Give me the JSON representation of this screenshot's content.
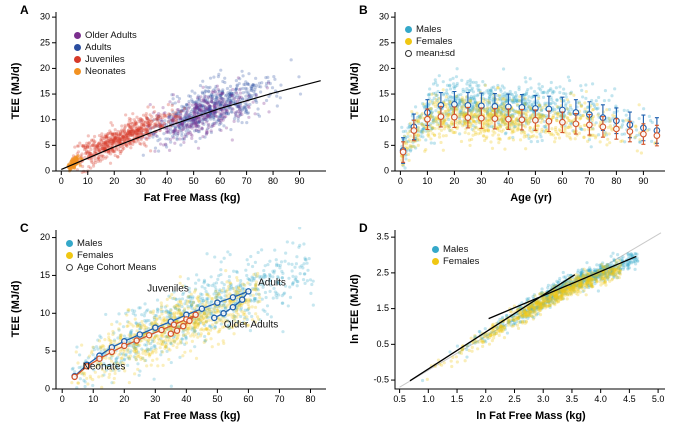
{
  "chart_data": [
    {
      "type": "scatter",
      "panel_letter": "A",
      "xlabel": "Fat Free Mass (kg)",
      "ylabel": "TEE (MJ/d)",
      "xlim": [
        -2,
        100
      ],
      "ylim": [
        0,
        31
      ],
      "xticks": [
        0,
        10,
        20,
        30,
        40,
        50,
        60,
        70,
        80,
        90
      ],
      "yticks": [
        0,
        5,
        10,
        15,
        20,
        25,
        30
      ],
      "legend": {
        "position": "top-left",
        "items": [
          {
            "label": "Older Adults",
            "swatch": "filled",
            "color": "#7b2f8e"
          },
          {
            "label": "Adults",
            "swatch": "filled",
            "color": "#2b4ea0"
          },
          {
            "label": "Juveniles",
            "swatch": "filled",
            "color": "#d63a2a"
          },
          {
            "label": "Neonates",
            "swatch": "filled",
            "color": "#f29222"
          }
        ]
      },
      "series": [
        {
          "kind": "cloud",
          "name": "Adults",
          "color": "#2b4ea0",
          "alpha": 0.28,
          "r": 1.6,
          "n": 650,
          "x_dist": {
            "type": "gauss",
            "mean": 56,
            "sd": 11,
            "clamp": [
              30,
              92
            ]
          },
          "trend": [
            [
              30,
              7.6
            ],
            [
              56,
              12.2
            ],
            [
              92,
              17.6
            ]
          ],
          "y_sd": 2.1
        },
        {
          "kind": "cloud",
          "name": "Older Adults",
          "color": "#7b2f8e",
          "alpha": 0.3,
          "r": 1.6,
          "n": 320,
          "x_dist": {
            "type": "gauss",
            "mean": 52,
            "sd": 10,
            "clamp": [
              30,
              80
            ]
          },
          "trend": [
            [
              30,
              7.2
            ],
            [
              52,
              10.8
            ],
            [
              80,
              15.0
            ]
          ],
          "y_sd": 2.0
        },
        {
          "kind": "cloud",
          "name": "Juveniles",
          "color": "#d63a2a",
          "alpha": 0.3,
          "r": 1.6,
          "n": 650,
          "x_dist": {
            "type": "gauss",
            "mean": 22,
            "sd": 10,
            "clamp": [
              4,
              48
            ]
          },
          "trend": [
            [
              4,
              2.0
            ],
            [
              22,
              6.3
            ],
            [
              48,
              12.0
            ]
          ],
          "y_sd": 1.4
        },
        {
          "kind": "cloud",
          "name": "Neonates",
          "color": "#f29222",
          "alpha": 0.5,
          "r": 1.5,
          "n": 140,
          "x_dist": {
            "type": "gauss",
            "mean": 4.5,
            "sd": 1.2,
            "clamp": [
              2.5,
              8
            ]
          },
          "trend": [
            [
              2.5,
              0.9
            ],
            [
              8,
              2.6
            ]
          ],
          "y_sd": 0.5
        },
        {
          "kind": "line",
          "name": "overall-fit",
          "color": "#000000",
          "width": 1.2,
          "points": [
            [
              0,
              0.3
            ],
            [
              20,
              4.7
            ],
            [
              40,
              8.7
            ],
            [
              60,
              12.2
            ],
            [
              80,
              15.2
            ],
            [
              98,
              17.6
            ]
          ]
        }
      ]
    },
    {
      "type": "scatter",
      "panel_letter": "B",
      "xlabel": "Age (yr)",
      "ylabel": "TEE (MJ/d)",
      "xlim": [
        -2,
        98
      ],
      "ylim": [
        0,
        31
      ],
      "xticks": [
        0,
        10,
        20,
        30,
        40,
        50,
        60,
        70,
        80,
        90
      ],
      "yticks": [
        0,
        5,
        10,
        15,
        20,
        25,
        30
      ],
      "legend": {
        "position": "top-left",
        "items": [
          {
            "label": "Males",
            "swatch": "filled",
            "color": "#35a8c9"
          },
          {
            "label": "Females",
            "swatch": "filled",
            "color": "#f0c713"
          },
          {
            "label": "mean±sd",
            "swatch": "open",
            "color": "#333333"
          }
        ]
      },
      "series": [
        {
          "kind": "cloud",
          "name": "Males",
          "color": "#35a8c9",
          "alpha": 0.3,
          "r": 1.6,
          "n": 850,
          "x_dist": {
            "type": "gauss",
            "mean": 33,
            "sd": 26,
            "clamp": [
              0.3,
              96
            ]
          },
          "trend": [
            [
              0,
              2.2
            ],
            [
              3,
              6.5
            ],
            [
              7,
              9.5
            ],
            [
              12,
              12.0
            ],
            [
              18,
              13.0
            ],
            [
              30,
              12.7
            ],
            [
              45,
              12.4
            ],
            [
              60,
              11.9
            ],
            [
              70,
              11.0
            ],
            [
              80,
              9.8
            ],
            [
              96,
              8.0
            ]
          ],
          "y_sd": 2.4
        },
        {
          "kind": "cloud",
          "name": "Females",
          "color": "#f0c713",
          "alpha": 0.3,
          "r": 1.6,
          "n": 850,
          "x_dist": {
            "type": "gauss",
            "mean": 33,
            "sd": 26,
            "clamp": [
              0.3,
              96
            ]
          },
          "trend": [
            [
              0,
              2.0
            ],
            [
              3,
              6.0
            ],
            [
              7,
              8.8
            ],
            [
              12,
              10.3
            ],
            [
              18,
              10.6
            ],
            [
              30,
              10.3
            ],
            [
              45,
              10.0
            ],
            [
              60,
              9.5
            ],
            [
              70,
              9.0
            ],
            [
              80,
              8.2
            ],
            [
              96,
              6.8
            ]
          ],
          "y_sd": 2.0
        },
        {
          "kind": "errorbars",
          "name": "Males mean±sd",
          "color": "#1d5fae",
          "sd": 2.5,
          "r": 2.8,
          "points": [
            [
              1,
              4.0
            ],
            [
              5,
              8.6
            ],
            [
              10,
              11.4
            ],
            [
              15,
              12.8
            ],
            [
              20,
              13.0
            ],
            [
              25,
              12.8
            ],
            [
              30,
              12.7
            ],
            [
              35,
              12.6
            ],
            [
              40,
              12.5
            ],
            [
              45,
              12.4
            ],
            [
              50,
              12.2
            ],
            [
              55,
              12.1
            ],
            [
              60,
              11.9
            ],
            [
              65,
              11.4
            ],
            [
              70,
              11.0
            ],
            [
              75,
              10.4
            ],
            [
              80,
              9.8
            ],
            [
              85,
              9.0
            ],
            [
              90,
              8.4
            ],
            [
              95,
              7.9
            ]
          ]
        },
        {
          "kind": "errorbars",
          "name": "Females mean±sd",
          "color": "#d2552b",
          "sd": 2.0,
          "r": 2.8,
          "points": [
            [
              1,
              3.7
            ],
            [
              5,
              7.9
            ],
            [
              10,
              10.1
            ],
            [
              15,
              10.6
            ],
            [
              20,
              10.5
            ],
            [
              25,
              10.4
            ],
            [
              30,
              10.3
            ],
            [
              35,
              10.2
            ],
            [
              40,
              10.1
            ],
            [
              45,
              10.0
            ],
            [
              50,
              9.9
            ],
            [
              55,
              9.7
            ],
            [
              60,
              9.5
            ],
            [
              65,
              9.2
            ],
            [
              70,
              9.0
            ],
            [
              75,
              8.6
            ],
            [
              80,
              8.2
            ],
            [
              85,
              7.7
            ],
            [
              90,
              7.2
            ],
            [
              95,
              6.9
            ]
          ]
        }
      ]
    },
    {
      "type": "scatter",
      "panel_letter": "C",
      "xlabel": "Fat Free Mass (kg)",
      "ylabel": "TEE (MJ/d)",
      "xlim": [
        -2,
        85
      ],
      "ylim": [
        0,
        21
      ],
      "xticks": [
        0,
        10,
        20,
        30,
        40,
        50,
        60,
        70,
        80
      ],
      "yticks": [
        0,
        5,
        10,
        15,
        20
      ],
      "legend": {
        "position": "top-left",
        "items": [
          {
            "label": "Males",
            "swatch": "filled",
            "color": "#35a8c9"
          },
          {
            "label": "Females",
            "swatch": "filled",
            "color": "#f0c713"
          },
          {
            "label": "Age Cohort Means",
            "swatch": "open",
            "color": "#444444"
          }
        ]
      },
      "annotations": [
        {
          "text": "Juveniles"
        },
        {
          "text": "Adults"
        },
        {
          "text": "Older Adults"
        },
        {
          "text": "Neonates"
        }
      ],
      "series": [
        {
          "kind": "cloud",
          "name": "Males",
          "color": "#35a8c9",
          "alpha": 0.28,
          "r": 1.6,
          "n": 750,
          "x_dist": {
            "type": "gauss",
            "mean": 45,
            "sd": 22,
            "clamp": [
              3,
              82
            ]
          },
          "trend": [
            [
              3,
              1.3
            ],
            [
              20,
              6.2
            ],
            [
              40,
              9.7
            ],
            [
              60,
              12.9
            ],
            [
              82,
              16.2
            ]
          ],
          "y_sd": 2.0
        },
        {
          "kind": "cloud",
          "name": "Females",
          "color": "#f0c713",
          "alpha": 0.28,
          "r": 1.6,
          "n": 750,
          "x_dist": {
            "type": "gauss",
            "mean": 38,
            "sd": 18,
            "clamp": [
              3,
              64
            ]
          },
          "trend": [
            [
              3,
              1.2
            ],
            [
              20,
              5.8
            ],
            [
              40,
              9.0
            ],
            [
              64,
              11.8
            ]
          ],
          "y_sd": 1.8
        },
        {
          "kind": "path",
          "name": "Male age cohort means",
          "color": "#1d5fae",
          "r": 2.6,
          "points": [
            [
              4,
              1.7
            ],
            [
              8,
              3.2
            ],
            [
              12,
              4.4
            ],
            [
              16,
              5.5
            ],
            [
              20,
              6.3
            ],
            [
              25,
              7.2
            ],
            [
              30,
              8.1
            ],
            [
              35,
              8.9
            ],
            [
              40,
              9.8
            ],
            [
              45,
              10.6
            ],
            [
              50,
              11.4
            ],
            [
              55,
              12.1
            ],
            [
              60,
              12.9
            ],
            [
              58,
              11.8
            ],
            [
              55,
              10.8
            ],
            [
              52,
              10.0
            ],
            [
              49,
              9.4
            ]
          ]
        },
        {
          "kind": "path",
          "name": "Female age cohort means",
          "color": "#d2552b",
          "r": 2.6,
          "points": [
            [
              4,
              1.6
            ],
            [
              8,
              3.0
            ],
            [
              12,
              4.0
            ],
            [
              16,
              4.9
            ],
            [
              20,
              5.7
            ],
            [
              24,
              6.4
            ],
            [
              28,
              7.1
            ],
            [
              32,
              7.8
            ],
            [
              36,
              8.5
            ],
            [
              40,
              9.2
            ],
            [
              43,
              9.8
            ],
            [
              41,
              9.0
            ],
            [
              39,
              8.3
            ],
            [
              37,
              7.7
            ],
            [
              35,
              7.3
            ]
          ]
        }
      ]
    },
    {
      "type": "scatter",
      "panel_letter": "D",
      "xlabel": "ln Fat Free Mass (kg)",
      "ylabel": "ln TEE (MJ/d)",
      "xlim": [
        0.42,
        5.12
      ],
      "ylim": [
        -0.75,
        3.7
      ],
      "xticks": [
        0.5,
        1.0,
        1.5,
        2.0,
        2.5,
        3.0,
        3.5,
        4.0,
        4.5,
        5.0
      ],
      "xtick_labels": [
        "0.5",
        "1.0",
        "1.5",
        "2.0",
        "2.5",
        "3.0",
        "3.5",
        "4.0",
        "4.5",
        "5.0"
      ],
      "yticks": [
        -0.5,
        0.5,
        1.5,
        2.5,
        3.5
      ],
      "ytick_labels": [
        "-0.5",
        "0.5",
        "1.5",
        "2.5",
        "3.5"
      ],
      "legend": {
        "position": "top-left",
        "items": [
          {
            "label": "Males",
            "swatch": "filled",
            "color": "#35a8c9"
          },
          {
            "label": "Females",
            "swatch": "filled",
            "color": "#f0c713"
          }
        ]
      },
      "series": [
        {
          "kind": "line",
          "name": "reference-line",
          "color": "#c9c9c9",
          "width": 1,
          "points": [
            [
              0.5,
              -0.7
            ],
            [
              5.05,
              3.62
            ]
          ]
        },
        {
          "kind": "cloud",
          "name": "Males",
          "color": "#35a8c9",
          "alpha": 0.3,
          "r": 1.6,
          "n": 750,
          "x_dist": {
            "type": "gauss",
            "mean": 3.6,
            "sd": 0.8,
            "clamp": [
              0.8,
              4.65
            ]
          },
          "trend": [
            [
              0.8,
              -0.45
            ],
            [
              1.5,
              0.28
            ],
            [
              2.2,
              0.95
            ],
            [
              3.0,
              1.75
            ],
            [
              3.5,
              2.22
            ],
            [
              4.0,
              2.52
            ],
            [
              4.65,
              2.9
            ]
          ],
          "y_sd": 0.14
        },
        {
          "kind": "cloud",
          "name": "Females",
          "color": "#f0c713",
          "alpha": 0.3,
          "r": 1.6,
          "n": 750,
          "x_dist": {
            "type": "gauss",
            "mean": 3.3,
            "sd": 0.8,
            "clamp": [
              0.8,
              4.35
            ]
          },
          "trend": [
            [
              0.8,
              -0.5
            ],
            [
              1.5,
              0.22
            ],
            [
              2.2,
              0.9
            ],
            [
              3.0,
              1.68
            ],
            [
              3.5,
              2.12
            ],
            [
              4.0,
              2.42
            ],
            [
              4.35,
              2.58
            ]
          ],
          "y_sd": 0.13
        },
        {
          "kind": "line",
          "name": "segment-fit-1",
          "color": "#000000",
          "width": 1.3,
          "points": [
            [
              0.68,
              -0.52
            ],
            [
              3.55,
              2.45
            ]
          ]
        },
        {
          "kind": "line",
          "name": "segment-fit-2",
          "color": "#000000",
          "width": 1.3,
          "points": [
            [
              2.05,
              1.22
            ],
            [
              4.62,
              2.96
            ]
          ]
        }
      ]
    }
  ]
}
